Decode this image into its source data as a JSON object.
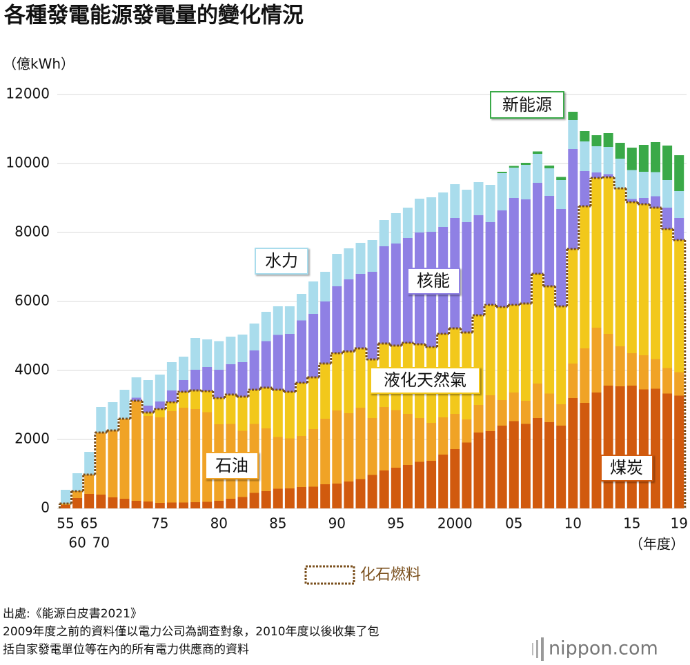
{
  "chart_data": {
    "type": "stacked_bar",
    "title": "各種發電能源發電量的變化情況",
    "y_axis_label": "（億kWh）",
    "x_axis_label": "（年度）",
    "categories": [
      "55",
      "60",
      "65",
      "70",
      null,
      null,
      null,
      null,
      "75",
      null,
      null,
      null,
      null,
      "80",
      null,
      null,
      null,
      null,
      "85",
      null,
      null,
      null,
      null,
      "90",
      null,
      null,
      null,
      null,
      "95",
      null,
      null,
      null,
      null,
      "2000",
      null,
      null,
      null,
      null,
      "05",
      null,
      null,
      null,
      null,
      "10",
      null,
      null,
      null,
      null,
      "15",
      null,
      null,
      null,
      "19"
    ],
    "series": [
      {
        "name": "煤炭",
        "color": "#d15a0e",
        "values": [
          100,
          300,
          420,
          400,
          320,
          280,
          220,
          200,
          160,
          170,
          170,
          180,
          190,
          220,
          280,
          330,
          450,
          500,
          570,
          580,
          620,
          630,
          700,
          720,
          780,
          850,
          970,
          1100,
          1180,
          1260,
          1350,
          1380,
          1560,
          1720,
          1910,
          2200,
          2240,
          2400,
          2530,
          2450,
          2620,
          2500,
          2400,
          3200,
          3060,
          3360,
          3560,
          3540,
          3560,
          3450,
          3470,
          3330,
          3270
        ]
      },
      {
        "name": "石油",
        "color": "#f0a326",
        "values": [
          40,
          200,
          560,
          1800,
          1940,
          2320,
          2900,
          2480,
          2480,
          2650,
          2750,
          2700,
          2600,
          2220,
          2170,
          1920,
          2000,
          1820,
          1500,
          1450,
          1480,
          1670,
          1900,
          2120,
          1980,
          2070,
          1650,
          1840,
          1670,
          1480,
          1270,
          1100,
          1080,
          1020,
          670,
          800,
          1040,
          740,
          830,
          670,
          1000,
          830,
          620,
          1000,
          1580,
          1880,
          1500,
          1160,
          940,
          990,
          860,
          740,
          680
        ]
      },
      {
        "name": "液化天然氣",
        "color": "#f2c81b",
        "values": [
          0,
          0,
          0,
          0,
          0,
          0,
          0,
          100,
          240,
          260,
          460,
          540,
          610,
          760,
          850,
          990,
          990,
          1180,
          1370,
          1350,
          1540,
          1500,
          1600,
          1660,
          1790,
          1720,
          1700,
          1840,
          1870,
          2060,
          2140,
          2200,
          2420,
          2480,
          2520,
          2600,
          2620,
          2700,
          2540,
          2820,
          3180,
          3110,
          2840,
          3320,
          4120,
          4340,
          4540,
          4580,
          4380,
          4380,
          4390,
          4030,
          3830
        ]
      },
      {
        "name": "核能",
        "color": "#8f80e4",
        "values": [
          0,
          0,
          0,
          0,
          0,
          0,
          90,
          200,
          220,
          340,
          340,
          600,
          700,
          820,
          880,
          1000,
          1140,
          1350,
          1590,
          1680,
          1810,
          1840,
          1800,
          1940,
          2090,
          2160,
          2540,
          2820,
          2960,
          3040,
          3240,
          3340,
          3100,
          3200,
          3200,
          2900,
          2400,
          2800,
          3100,
          3020,
          2640,
          2620,
          2820,
          2900,
          1020,
          160,
          90,
          0,
          90,
          180,
          330,
          620,
          640
        ]
      },
      {
        "name": "水力",
        "color": "#a9dcec",
        "values": [
          400,
          520,
          660,
          740,
          820,
          840,
          590,
          740,
          780,
          820,
          680,
          920,
          800,
          830,
          800,
          800,
          780,
          850,
          830,
          800,
          770,
          940,
          860,
          940,
          900,
          900,
          920,
          760,
          880,
          880,
          980,
          1000,
          1000,
          980,
          940,
          960,
          1080,
          1080,
          880,
          1000,
          840,
          800,
          840,
          840,
          860,
          760,
          790,
          860,
          840,
          760,
          700,
          800,
          780
        ]
      },
      {
        "name": "新能源",
        "color": "#3aa948",
        "values": [
          0,
          0,
          0,
          0,
          0,
          0,
          0,
          0,
          0,
          0,
          0,
          0,
          0,
          0,
          0,
          0,
          0,
          0,
          0,
          0,
          0,
          0,
          0,
          0,
          0,
          0,
          0,
          0,
          0,
          0,
          0,
          0,
          0,
          0,
          0,
          0,
          0,
          40,
          50,
          60,
          70,
          80,
          90,
          240,
          300,
          320,
          400,
          460,
          650,
          780,
          870,
          1000,
          1040
        ]
      }
    ],
    "fossil_label": "化石燃料",
    "fossil_color": "#7a4f1c",
    "ylim": [
      0,
      12000
    ],
    "yticks": [
      0,
      2000,
      4000,
      6000,
      8000,
      10000,
      12000
    ],
    "grid": true
  },
  "source": [
    "出處:《能源白皮書2021》",
    "2009年度之前的資料僅以電力公司為調查對象，2010年度以後收集了包",
    "括自家發電單位等在內的所有電力供應商的資料"
  ],
  "brand": "nippon.com"
}
